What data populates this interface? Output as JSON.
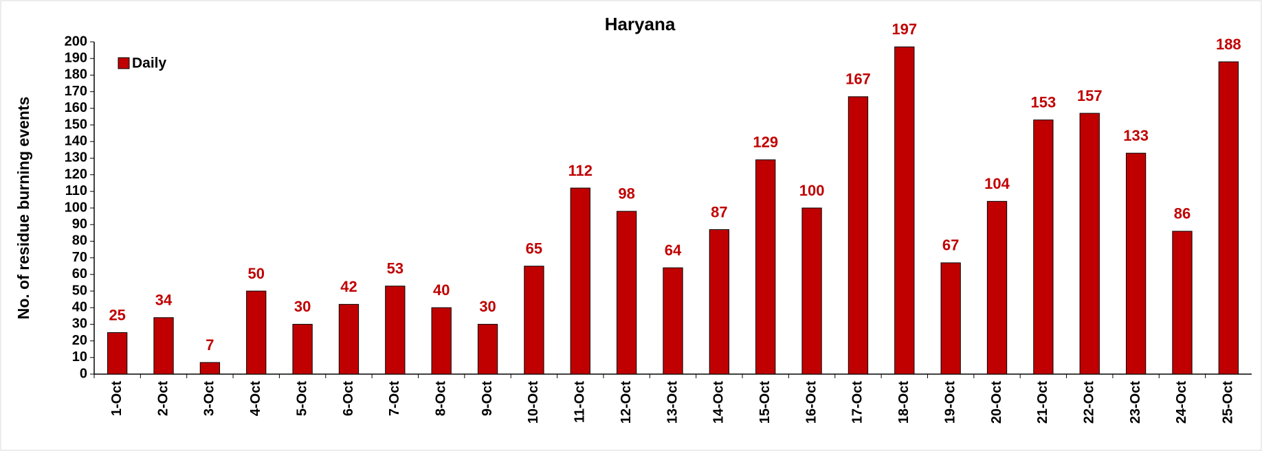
{
  "chart_data": {
    "type": "bar",
    "title": "Haryana",
    "ylabel": "No. of residue burning events",
    "categories": [
      "1-Oct",
      "2-Oct",
      "3-Oct",
      "4-Oct",
      "5-Oct",
      "6-Oct",
      "7-Oct",
      "8-Oct",
      "9-Oct",
      "10-Oct",
      "11-Oct",
      "12-Oct",
      "13-Oct",
      "14-Oct",
      "15-Oct",
      "16-Oct",
      "17-Oct",
      "18-Oct",
      "19-Oct",
      "20-Oct",
      "21-Oct",
      "22-Oct",
      "23-Oct",
      "24-Oct",
      "25-Oct"
    ],
    "series": [
      {
        "name": "Daily",
        "color": "#c00000",
        "values": [
          25,
          34,
          7,
          50,
          30,
          42,
          53,
          40,
          30,
          65,
          112,
          98,
          64,
          87,
          129,
          100,
          167,
          197,
          67,
          104,
          153,
          157,
          133,
          86,
          188
        ]
      }
    ],
    "ylim": [
      0,
      200
    ],
    "yticks": [
      0,
      10,
      20,
      30,
      40,
      50,
      60,
      70,
      80,
      90,
      100,
      110,
      120,
      130,
      140,
      150,
      160,
      170,
      180,
      190,
      200
    ],
    "grid": false,
    "legend": "top-left"
  }
}
